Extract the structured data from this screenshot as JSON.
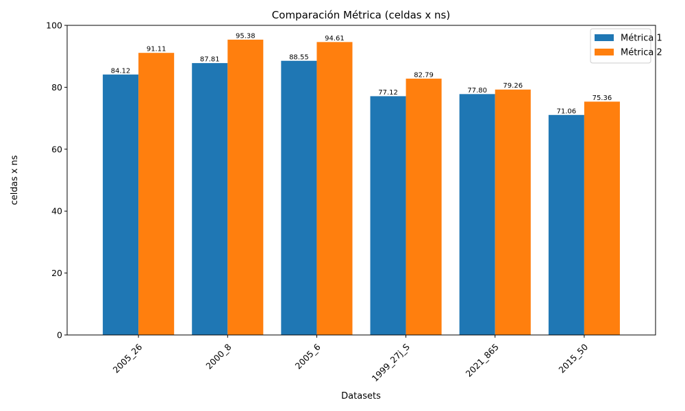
{
  "chart_data": {
    "type": "bar",
    "title": "Comparación Métrica (celdas x ns)",
    "xlabel": "Datasets",
    "ylabel": "celdas x ns",
    "categories": [
      "2005_26",
      "2000_8",
      "2005_6",
      "1999_27j_S",
      "2021_865",
      "2015_50"
    ],
    "series": [
      {
        "name": "Métrica 1",
        "color": "#1f77b4",
        "values": [
          84.12,
          87.81,
          88.55,
          77.12,
          77.8,
          71.06
        ],
        "labels": [
          "84.12",
          "87.81",
          "88.55",
          "77.12",
          "77.80",
          "71.06"
        ]
      },
      {
        "name": "Métrica 2",
        "color": "#ff7f0e",
        "values": [
          91.11,
          95.38,
          94.61,
          82.79,
          79.26,
          75.36
        ],
        "labels": [
          "91.11",
          "95.38",
          "94.61",
          "82.79",
          "79.26",
          "75.36"
        ]
      }
    ],
    "ylim": [
      0,
      100
    ],
    "yticks": [
      0,
      20,
      40,
      60,
      80,
      100
    ],
    "xtick_rotation": 45,
    "grid": false,
    "legend_position": "top-right"
  }
}
